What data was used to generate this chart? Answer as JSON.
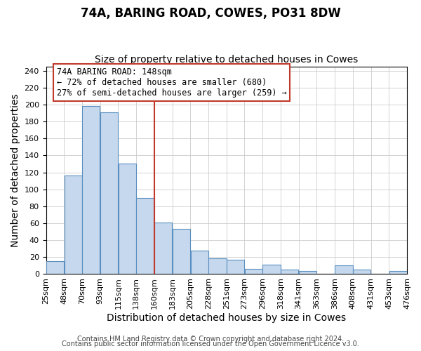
{
  "title": "74A, BARING ROAD, COWES, PO31 8DW",
  "subtitle": "Size of property relative to detached houses in Cowes",
  "xlabel": "Distribution of detached houses by size in Cowes",
  "ylabel": "Number of detached properties",
  "bar_labels": [
    "25sqm",
    "48sqm",
    "70sqm",
    "93sqm",
    "115sqm",
    "138sqm",
    "160sqm",
    "183sqm",
    "205sqm",
    "228sqm",
    "251sqm",
    "273sqm",
    "296sqm",
    "318sqm",
    "341sqm",
    "363sqm",
    "386sqm",
    "408sqm",
    "431sqm",
    "453sqm",
    "476sqm"
  ],
  "bar_heights": [
    15,
    116,
    198,
    191,
    130,
    90,
    61,
    53,
    28,
    19,
    17,
    6,
    11,
    5,
    4,
    0,
    10,
    5,
    0,
    4
  ],
  "bar_color": "#c5d8ed",
  "bar_edge_color": "#5a8fc0",
  "vline_color": "#c0392b",
  "annotation_title": "74A BARING ROAD: 148sqm",
  "annotation_line1": "← 72% of detached houses are smaller (680)",
  "annotation_line2": "27% of semi-detached houses are larger (259) →",
  "annotation_box_color": "#c0392b",
  "ylim": [
    0,
    245
  ],
  "yticks": [
    0,
    20,
    40,
    60,
    80,
    100,
    120,
    140,
    160,
    180,
    200,
    220,
    240
  ],
  "footer1": "Contains HM Land Registry data © Crown copyright and database right 2024.",
  "footer2": "Contains public sector information licensed under the Open Government Licence v3.0.",
  "bg_color": "#ffffff",
  "grid_color": "#cccccc",
  "title_fontsize": 12,
  "subtitle_fontsize": 10,
  "axis_label_fontsize": 10,
  "tick_fontsize": 8,
  "footer_fontsize": 7
}
